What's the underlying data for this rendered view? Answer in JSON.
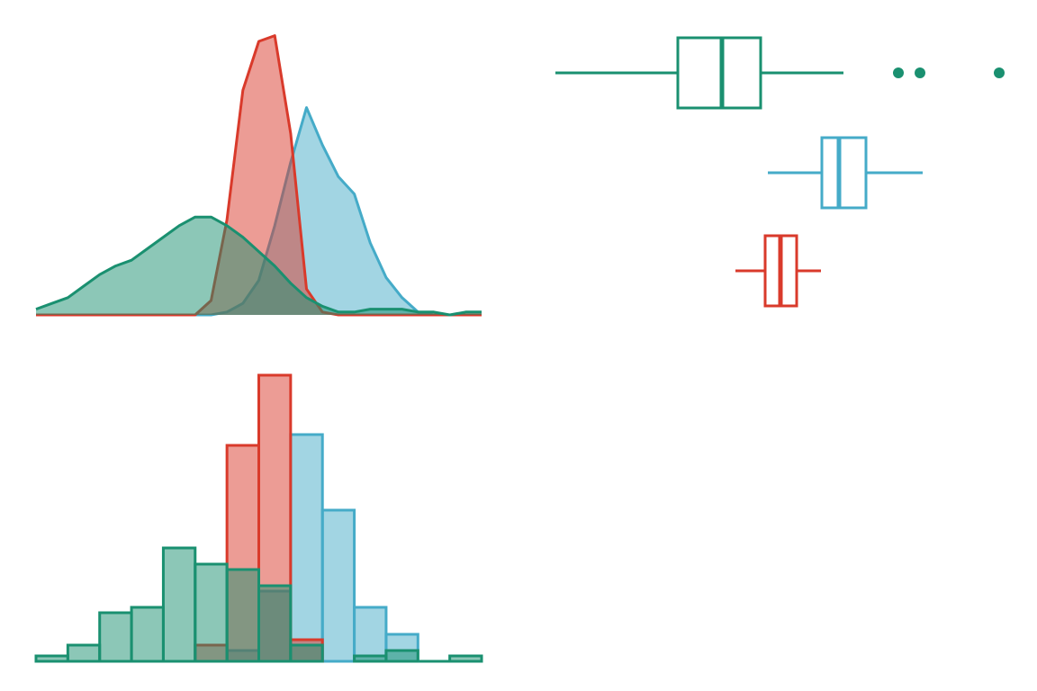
{
  "chart_data": [
    {
      "type": "density",
      "x": [
        0,
        0.5,
        1,
        1.5,
        2,
        2.5,
        3,
        3.5,
        4,
        4.5,
        5,
        5.5,
        6,
        6.5,
        7,
        7.5,
        8,
        8.5,
        9,
        9.5,
        10,
        10.5,
        11,
        11.5,
        12,
        12.5,
        13,
        13.5,
        14
      ],
      "xlim": [
        0,
        14
      ],
      "ylim": [
        0,
        1
      ],
      "series": [
        {
          "color": "#45abc8",
          "values": [
            0,
            0,
            0,
            0,
            0,
            0,
            0,
            0,
            0,
            0,
            0,
            0,
            0.01,
            0.04,
            0.12,
            0.31,
            0.53,
            0.72,
            0.59,
            0.48,
            0.42,
            0.25,
            0.13,
            0.06,
            0.01,
            0,
            0,
            0,
            0
          ]
        },
        {
          "color": "#d93a2b",
          "values": [
            0,
            0,
            0,
            0,
            0,
            0,
            0,
            0,
            0,
            0,
            0,
            0.05,
            0.33,
            0.78,
            0.95,
            0.97,
            0.63,
            0.09,
            0.01,
            0,
            0,
            0,
            0,
            0,
            0,
            0,
            0,
            0,
            0
          ]
        },
        {
          "color": "#1a9070",
          "values": [
            0.02,
            0.04,
            0.06,
            0.1,
            0.14,
            0.17,
            0.19,
            0.23,
            0.27,
            0.31,
            0.34,
            0.34,
            0.31,
            0.27,
            0.22,
            0.17,
            0.11,
            0.06,
            0.03,
            0.01,
            0.01,
            0.02,
            0.02,
            0.02,
            0.01,
            0.01,
            0,
            0.01,
            0.01
          ]
        }
      ]
    },
    {
      "type": "box",
      "xlim": [
        0,
        21
      ],
      "boxes": [
        {
          "color": "#1a9070",
          "whislo": 0.68,
          "q1": 6.12,
          "med": 8.08,
          "q3": 9.8,
          "whishi": 13.48,
          "fliers": [
            15.92,
            16.88,
            20.4
          ]
        },
        {
          "color": "#45abc8",
          "whislo": 10.12,
          "q1": 12.52,
          "med": 13.28,
          "q3": 14.48,
          "whishi": 17.0,
          "fliers": []
        },
        {
          "color": "#d93a2b",
          "whislo": 8.68,
          "q1": 10.0,
          "med": 10.68,
          "q3": 11.4,
          "whishi": 12.48,
          "fliers": []
        }
      ]
    },
    {
      "type": "histogram",
      "bins": [
        0,
        1,
        2,
        3,
        4,
        5,
        6,
        7,
        8,
        9,
        10,
        11,
        12,
        13,
        14
      ],
      "ylim": [
        0,
        55
      ],
      "series": [
        {
          "color": "#45abc8",
          "values": [
            0,
            0,
            0,
            0,
            0,
            0,
            2,
            13,
            42,
            28,
            10,
            5,
            0,
            0
          ]
        },
        {
          "color": "#d93a2b",
          "values": [
            0,
            0,
            0,
            0,
            0,
            3,
            40,
            53,
            4,
            0,
            0,
            0,
            0,
            0
          ]
        },
        {
          "color": "#1a9070",
          "values": [
            1,
            3,
            9,
            10,
            21,
            18,
            17,
            14,
            3,
            0,
            1,
            2,
            0,
            1
          ]
        }
      ]
    }
  ]
}
